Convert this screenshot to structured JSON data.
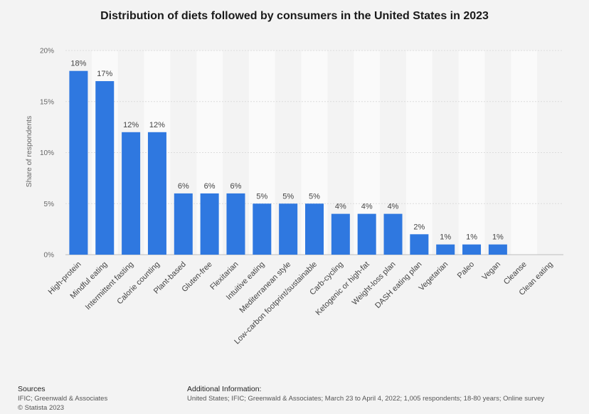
{
  "chart_data": {
    "type": "bar",
    "title": "Distribution of diets followed by consumers in the United States in 2023",
    "xlabel": "",
    "ylabel": "Share of respondents",
    "ylim": [
      0,
      20
    ],
    "yticks": [
      0,
      5,
      10,
      15,
      20
    ],
    "ytick_labels": [
      "0%",
      "5%",
      "10%",
      "15%",
      "20%"
    ],
    "categories": [
      "High-protein",
      "Mindful eating",
      "Intermittent fasting",
      "Calorie counting",
      "Plant-based",
      "Gluten-free",
      "Flexitarian",
      "Intuitive eating",
      "Mediterranean style",
      "Low-carbon footprint/sustainable",
      "Carb-cycling",
      "Ketogenic or high-fat",
      "Weight-loss plan",
      "DASH eating plan",
      "Vegetarian",
      "Paleo",
      "Vegan",
      "Cleanse",
      "Clean eating"
    ],
    "values": [
      18,
      17,
      12,
      12,
      6,
      6,
      6,
      5,
      5,
      5,
      4,
      4,
      4,
      2,
      1,
      1,
      1,
      0,
      0
    ],
    "data_labels": [
      "18%",
      "17%",
      "12%",
      "12%",
      "6%",
      "6%",
      "6%",
      "5%",
      "5%",
      "5%",
      "4%",
      "4%",
      "4%",
      "2%",
      "1%",
      "1%",
      "1%",
      "",
      ""
    ],
    "bar_color": "#2f78e0",
    "grid": true
  },
  "footer": {
    "sources_heading": "Sources",
    "sources_text": "IFIC; Greenwald & Associates",
    "copyright": "© Statista 2023",
    "additional_heading": "Additional Information:",
    "additional_text": "United States; IFIC; Greenwald & Associates; March 23 to April 4, 2022; 1,005 respondents; 18-80 years; Online survey"
  }
}
